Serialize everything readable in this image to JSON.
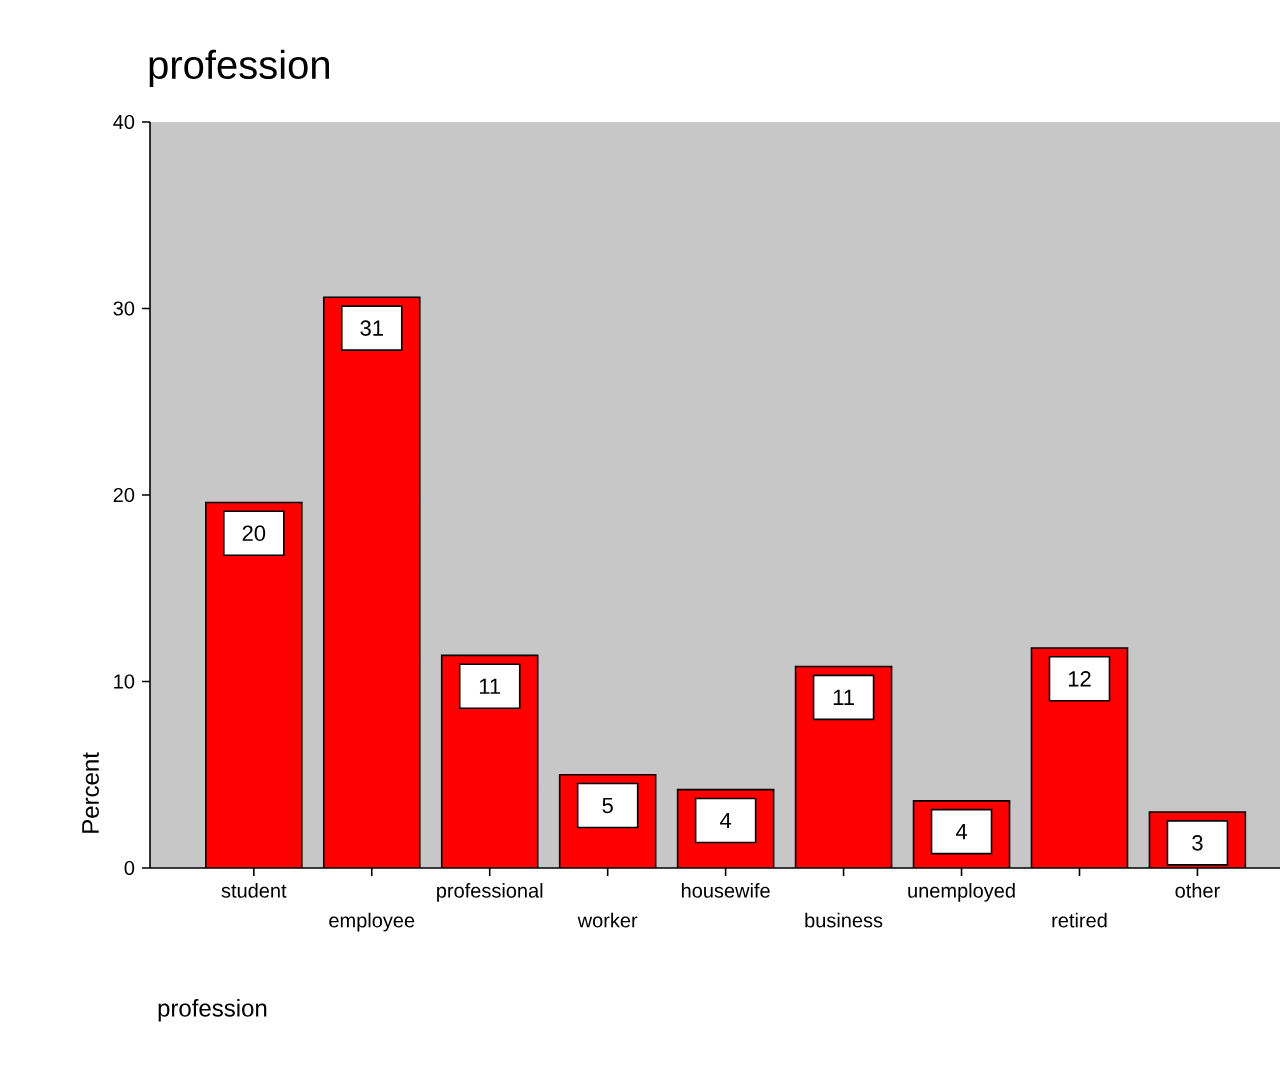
{
  "chart_data": {
    "type": "bar",
    "title": "profession",
    "xlabel": "profession",
    "ylabel": "Percent",
    "categories": [
      "student",
      "employee",
      "professional",
      "worker",
      "housewife",
      "business",
      "unemployed",
      "retired",
      "other"
    ],
    "values": [
      19.6,
      30.6,
      11.4,
      5.0,
      4.2,
      10.8,
      3.6,
      11.8,
      3.0
    ],
    "value_labels": [
      "20",
      "31",
      "11",
      "5",
      "4",
      "11",
      "4",
      "12",
      "3"
    ],
    "color": "#ff0000",
    "ylim": [
      0,
      40
    ],
    "yticks": [
      0,
      10,
      20,
      30,
      40
    ]
  }
}
